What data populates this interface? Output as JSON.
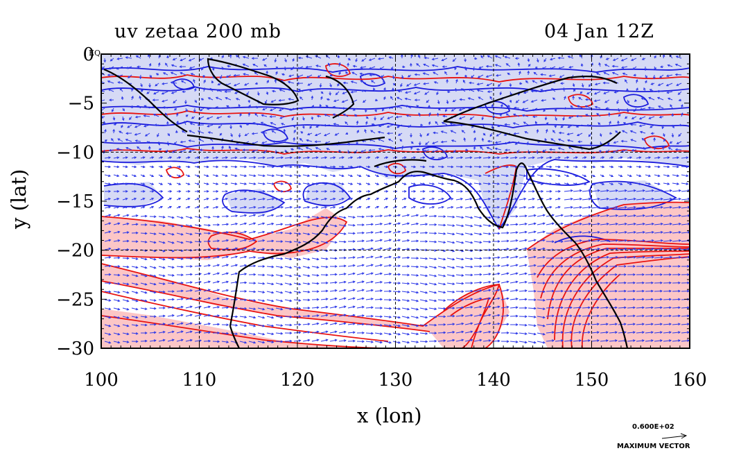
{
  "map": {
    "title": "uv zetaa 200 mb",
    "time": "04 Jan 12Z",
    "x_axis_label": "x (lon)",
    "y_axis_label": "y (lat)",
    "x_ticks": [
      "100",
      "110",
      "120",
      "130",
      "140",
      "150",
      "160"
    ],
    "y_ticks": [
      "0",
      "−5",
      "−10",
      "−15",
      "−20",
      "−25",
      "−30"
    ],
    "corner_label": "EQ",
    "lon_range": [
      100,
      160
    ],
    "lat_range": [
      -30,
      0
    ],
    "grid": true,
    "colors": {
      "positive_contour": "#e8120f",
      "negative_contour": "#1a1adc",
      "positive_fill": "#fcc6c6",
      "negative_fill": "#d6daf5",
      "vector": "#2c38e8",
      "coast": "#000000"
    }
  },
  "legend": {
    "max_vector_value": "0.600E+02",
    "max_vector_label": "MAXIMUM VECTOR"
  }
}
